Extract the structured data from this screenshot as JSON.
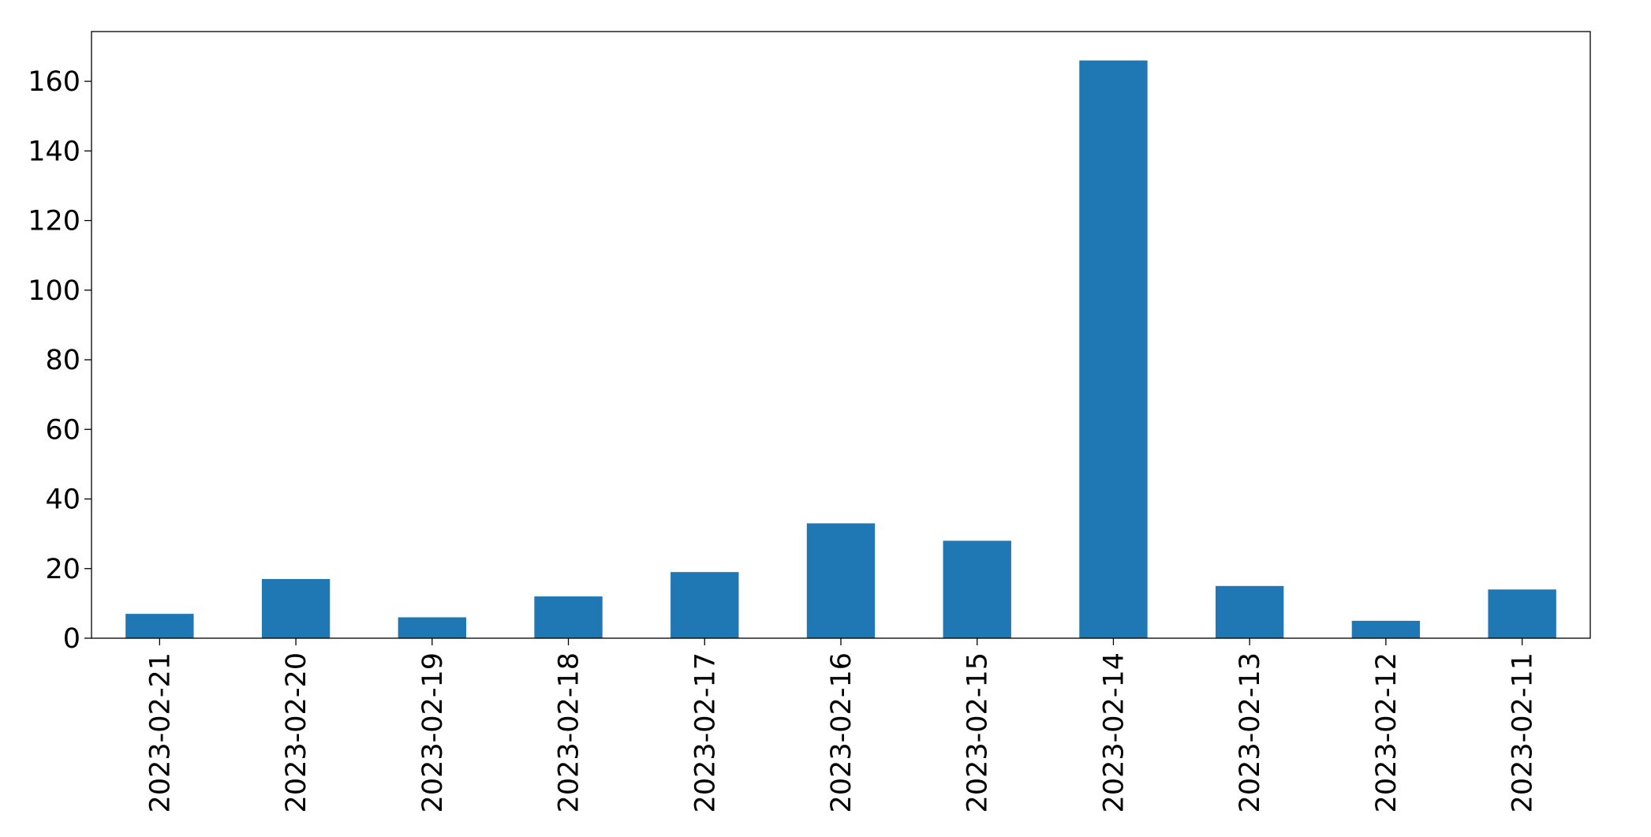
{
  "chart_data": {
    "type": "bar",
    "categories": [
      "2023-02-21",
      "2023-02-20",
      "2023-02-19",
      "2023-02-18",
      "2023-02-17",
      "2023-02-16",
      "2023-02-15",
      "2023-02-14",
      "2023-02-13",
      "2023-02-12",
      "2023-02-11"
    ],
    "values": [
      7,
      17,
      6,
      12,
      19,
      33,
      28,
      166,
      15,
      5,
      14
    ],
    "color": "#1f77b4",
    "ylim": [
      0,
      174.3
    ],
    "yticks": [
      0,
      20,
      40,
      60,
      80,
      100,
      120,
      140,
      160
    ],
    "grid": false
  }
}
